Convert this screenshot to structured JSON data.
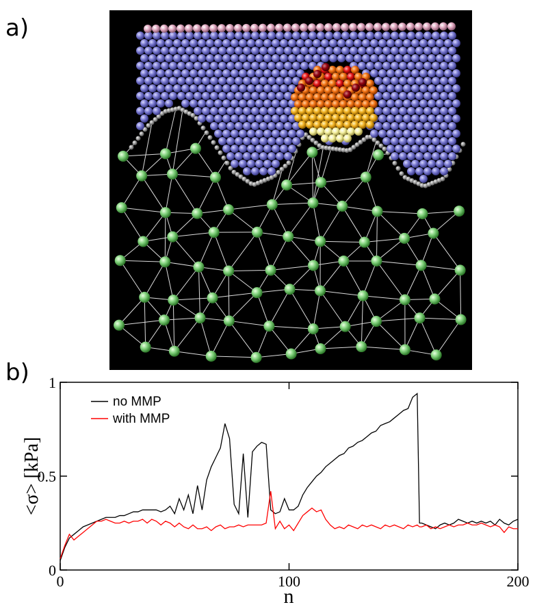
{
  "panel_labels": [
    "a)",
    "b)"
  ],
  "chart_data": {
    "type": "line",
    "x_label": "n",
    "y_label": "<σ> [kPa]",
    "xlim": [
      0,
      200
    ],
    "ylim": [
      0,
      1
    ],
    "xticks": [
      0,
      100,
      200
    ],
    "yticks": [
      0,
      0.5,
      1
    ],
    "legend": "upper left",
    "grid": false,
    "x": [
      0,
      2,
      4,
      6,
      8,
      10,
      12,
      14,
      16,
      18,
      20,
      22,
      24,
      26,
      28,
      30,
      32,
      34,
      36,
      38,
      40,
      42,
      44,
      46,
      48,
      50,
      52,
      54,
      56,
      58,
      60,
      62,
      64,
      66,
      68,
      70,
      72,
      74,
      76,
      78,
      80,
      82,
      84,
      86,
      88,
      90,
      92,
      94,
      96,
      98,
      100,
      102,
      104,
      106,
      108,
      110,
      112,
      114,
      116,
      118,
      120,
      122,
      124,
      126,
      128,
      130,
      132,
      134,
      136,
      138,
      140,
      142,
      144,
      146,
      148,
      150,
      152,
      154,
      156,
      157,
      158,
      160,
      162,
      164,
      166,
      168,
      170,
      172,
      174,
      176,
      178,
      180,
      182,
      184,
      186,
      188,
      190,
      192,
      194,
      196,
      198,
      200
    ],
    "series": [
      {
        "name": "no MMP",
        "color": "#000000",
        "values": [
          0.05,
          0.12,
          0.17,
          0.19,
          0.21,
          0.23,
          0.24,
          0.25,
          0.26,
          0.27,
          0.28,
          0.28,
          0.28,
          0.29,
          0.29,
          0.3,
          0.31,
          0.31,
          0.32,
          0.32,
          0.32,
          0.32,
          0.31,
          0.32,
          0.34,
          0.3,
          0.38,
          0.32,
          0.4,
          0.3,
          0.45,
          0.32,
          0.48,
          0.55,
          0.6,
          0.65,
          0.78,
          0.7,
          0.35,
          0.3,
          0.62,
          0.28,
          0.63,
          0.66,
          0.68,
          0.67,
          0.32,
          0.3,
          0.31,
          0.38,
          0.32,
          0.32,
          0.34,
          0.4,
          0.44,
          0.47,
          0.5,
          0.52,
          0.55,
          0.57,
          0.59,
          0.61,
          0.62,
          0.65,
          0.66,
          0.68,
          0.69,
          0.71,
          0.73,
          0.74,
          0.77,
          0.78,
          0.79,
          0.81,
          0.83,
          0.85,
          0.86,
          0.92,
          0.94,
          0.25,
          0.25,
          0.24,
          0.23,
          0.22,
          0.24,
          0.25,
          0.24,
          0.25,
          0.27,
          0.26,
          0.25,
          0.26,
          0.25,
          0.26,
          0.25,
          0.26,
          0.24,
          0.27,
          0.25,
          0.24,
          0.26,
          0.27
        ]
      },
      {
        "name": "with MMP",
        "color": "#ff0000",
        "values": [
          0.06,
          0.13,
          0.19,
          0.16,
          0.18,
          0.2,
          0.22,
          0.24,
          0.26,
          0.26,
          0.27,
          0.26,
          0.25,
          0.25,
          0.26,
          0.25,
          0.26,
          0.26,
          0.27,
          0.25,
          0.27,
          0.26,
          0.24,
          0.26,
          0.25,
          0.23,
          0.25,
          0.23,
          0.22,
          0.24,
          0.22,
          0.22,
          0.23,
          0.21,
          0.23,
          0.24,
          0.22,
          0.23,
          0.23,
          0.24,
          0.23,
          0.24,
          0.24,
          0.24,
          0.24,
          0.25,
          0.42,
          0.22,
          0.26,
          0.22,
          0.24,
          0.21,
          0.25,
          0.29,
          0.31,
          0.33,
          0.31,
          0.32,
          0.27,
          0.24,
          0.22,
          0.23,
          0.22,
          0.24,
          0.23,
          0.22,
          0.24,
          0.23,
          0.24,
          0.23,
          0.22,
          0.24,
          0.23,
          0.24,
          0.23,
          0.22,
          0.24,
          0.23,
          0.24,
          0.23,
          0.23,
          0.24,
          0.22,
          0.23,
          0.22,
          0.23,
          0.24,
          0.23,
          0.24,
          0.24,
          0.25,
          0.24,
          0.24,
          0.25,
          0.24,
          0.23,
          0.24,
          0.23,
          0.2,
          0.23,
          0.22,
          0.22
        ]
      }
    ]
  }
}
